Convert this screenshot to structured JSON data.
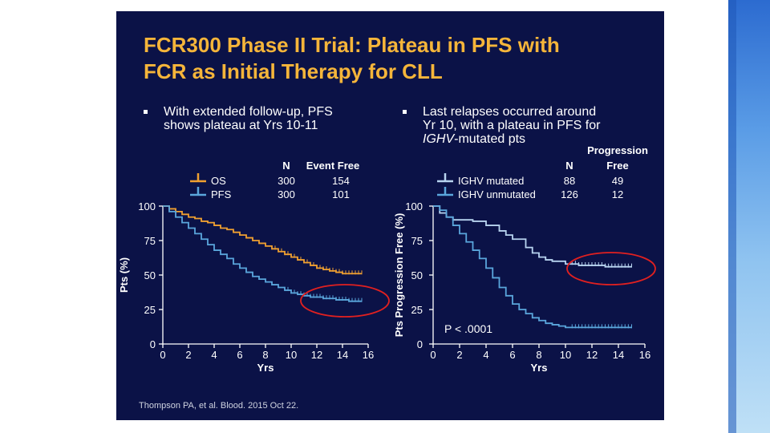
{
  "slide": {
    "title_line1": "FCR300 Phase II Trial: Plateau in PFS with",
    "title_line2": "FCR as Initial Therapy for CLL",
    "bullet_left_l1": "With extended follow-up, PFS",
    "bullet_left_l2": "shows plateau at Yrs 10-11",
    "bullet_right_l1": "Last relapses occurred around",
    "bullet_right_l2": "Yr 10, with a plateau in PFS for",
    "bullet_right_l3_italic": "IGHV",
    "bullet_right_l3_rest": "-mutated pts",
    "citation": "Thompson PA, et al. Blood. 2015 Oct 22.",
    "colors": {
      "background": "#0b1247",
      "title": "#f5b53a",
      "os": "#f0a030",
      "pfs": "#5aa6dc",
      "circle": "#e02020"
    }
  },
  "chart_data": [
    {
      "type": "line",
      "xlabel": "Yrs",
      "ylabel": "Pts (%)",
      "xlim": [
        0,
        16
      ],
      "ylim": [
        0,
        100
      ],
      "xticks": [
        "0",
        "2",
        "4",
        "6",
        "8",
        "10",
        "12",
        "14",
        "16"
      ],
      "yticks": [
        "0",
        "25",
        "50",
        "75",
        "100"
      ],
      "legend_headers": {
        "n": "N",
        "event_free": "Event Free"
      },
      "series": [
        {
          "name": "OS",
          "n": "300",
          "event_free": "154",
          "color": "#f0a030",
          "x": [
            0,
            0.5,
            1,
            1.5,
            2,
            2.5,
            3,
            3.5,
            4,
            4.5,
            5,
            5.5,
            6,
            6.5,
            7,
            7.5,
            8,
            8.5,
            9,
            9.5,
            10,
            10.5,
            11,
            11.5,
            12,
            12.5,
            13,
            13.5,
            14,
            14.5,
            15.5
          ],
          "y": [
            100,
            98,
            96,
            94,
            92,
            91,
            89,
            88,
            86,
            84,
            83,
            81,
            79,
            77,
            75,
            73,
            71,
            69,
            67,
            65,
            63,
            61,
            59,
            57,
            55,
            54,
            53,
            52,
            51,
            51,
            51
          ],
          "censor_from": 8.5
        },
        {
          "name": "PFS",
          "n": "300",
          "event_free": "101",
          "color": "#5aa6dc",
          "x": [
            0,
            0.5,
            1,
            1.5,
            2,
            2.5,
            3,
            3.5,
            4,
            4.5,
            5,
            5.5,
            6,
            6.5,
            7,
            7.5,
            8,
            8.5,
            9,
            9.5,
            10,
            10.5,
            11,
            11.5,
            12,
            12.5,
            13,
            13.5,
            14,
            14.5,
            15.5
          ],
          "y": [
            100,
            96,
            92,
            88,
            84,
            80,
            76,
            72,
            68,
            65,
            62,
            58,
            55,
            52,
            49,
            47,
            45,
            43,
            41,
            39,
            37,
            36,
            35,
            34,
            34,
            33,
            33,
            32,
            32,
            31,
            31
          ],
          "censor_from": 9.5
        }
      ],
      "annotation": "plateau circled at Yrs 10-15"
    },
    {
      "type": "line",
      "xlabel": "Yrs",
      "ylabel": "Pts Progression Free (%)",
      "xlim": [
        0,
        16
      ],
      "ylim": [
        0,
        100
      ],
      "xticks": [
        "0",
        "2",
        "4",
        "6",
        "8",
        "10",
        "12",
        "14",
        "16"
      ],
      "yticks": [
        "0",
        "25",
        "50",
        "75",
        "100"
      ],
      "legend_headers": {
        "n": "N",
        "pf_line1": "Progression",
        "pf_line2": "Free"
      },
      "pvalue": "P < .0001",
      "series": [
        {
          "name": "IGHV mutated",
          "n": "88",
          "progression_free": "49",
          "color": "#b8d4f0",
          "x": [
            0,
            0.5,
            1,
            1.5,
            2,
            3,
            4,
            5,
            5.5,
            6,
            7,
            7.5,
            8,
            8.5,
            9,
            10,
            10.5,
            11,
            12,
            13,
            15
          ],
          "y": [
            100,
            95,
            92,
            90,
            90,
            89,
            86,
            82,
            79,
            76,
            70,
            66,
            63,
            61,
            60,
            58,
            58,
            57,
            57,
            56,
            56
          ],
          "censor_from": 10.5
        },
        {
          "name": "IGHV unmutated",
          "n": "126",
          "progression_free": "12",
          "color": "#5aa6dc",
          "x": [
            0,
            0.5,
            1,
            1.5,
            2,
            2.5,
            3,
            3.5,
            4,
            4.5,
            5,
            5.5,
            6,
            6.5,
            7,
            7.5,
            8,
            8.5,
            9,
            9.5,
            10,
            10.5,
            11,
            12,
            13,
            15
          ],
          "y": [
            100,
            97,
            92,
            86,
            80,
            74,
            68,
            62,
            55,
            48,
            41,
            35,
            29,
            25,
            22,
            19,
            17,
            15,
            14,
            13,
            12,
            12,
            12,
            12,
            12,
            12
          ],
          "censor_from": 10.5
        }
      ],
      "annotation": "plateau circled at Yrs 11-17"
    }
  ]
}
